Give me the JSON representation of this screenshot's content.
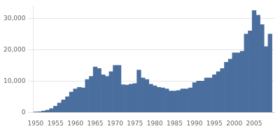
{
  "chart_data": {
    "type": "bar",
    "x": [
      1950,
      1951,
      1952,
      1953,
      1954,
      1955,
      1956,
      1957,
      1958,
      1959,
      1960,
      1961,
      1962,
      1963,
      1964,
      1965,
      1966,
      1967,
      1968,
      1969,
      1970,
      1971,
      1972,
      1973,
      1974,
      1975,
      1976,
      1977,
      1978,
      1979,
      1980,
      1981,
      1982,
      1983,
      1984,
      1985,
      1986,
      1987,
      1988,
      1989,
      1990,
      1991,
      1992,
      1993,
      1994,
      1995,
      1996,
      1997,
      1998,
      1999,
      2000,
      2001,
      2002,
      2003,
      2004,
      2005,
      2006,
      2007,
      2008,
      2009
    ],
    "values": [
      100,
      200,
      400,
      700,
      1200,
      2000,
      3000,
      4000,
      5000,
      6500,
      7500,
      8000,
      7800,
      10500,
      11500,
      14500,
      14000,
      12000,
      11500,
      13000,
      15000,
      15000,
      8800,
      8700,
      9000,
      9200,
      13500,
      11000,
      10500,
      9000,
      8500,
      8000,
      7800,
      7500,
      6800,
      6800,
      7000,
      7500,
      7500,
      7800,
      9500,
      10000,
      10000,
      11000,
      11000,
      12000,
      13000,
      14000,
      16000,
      17000,
      19000,
      19000,
      19500,
      25000,
      26000,
      32500,
      31000,
      28000,
      21000,
      25000
    ],
    "color": "#4a6e9e",
    "xlim": [
      1949.4,
      2010.1
    ],
    "xticks": [
      1950,
      1955,
      1960,
      1965,
      1970,
      1975,
      1980,
      1985,
      1990,
      1995,
      2000,
      2005
    ],
    "ylim": [
      0,
      34000
    ],
    "yticks": [
      0,
      {
        "value": 10000,
        "label": "10,000"
      },
      {
        "value": 20000,
        "label": "20,000"
      },
      {
        "value": 30000,
        "label": "30,000"
      }
    ],
    "grid": "y"
  }
}
